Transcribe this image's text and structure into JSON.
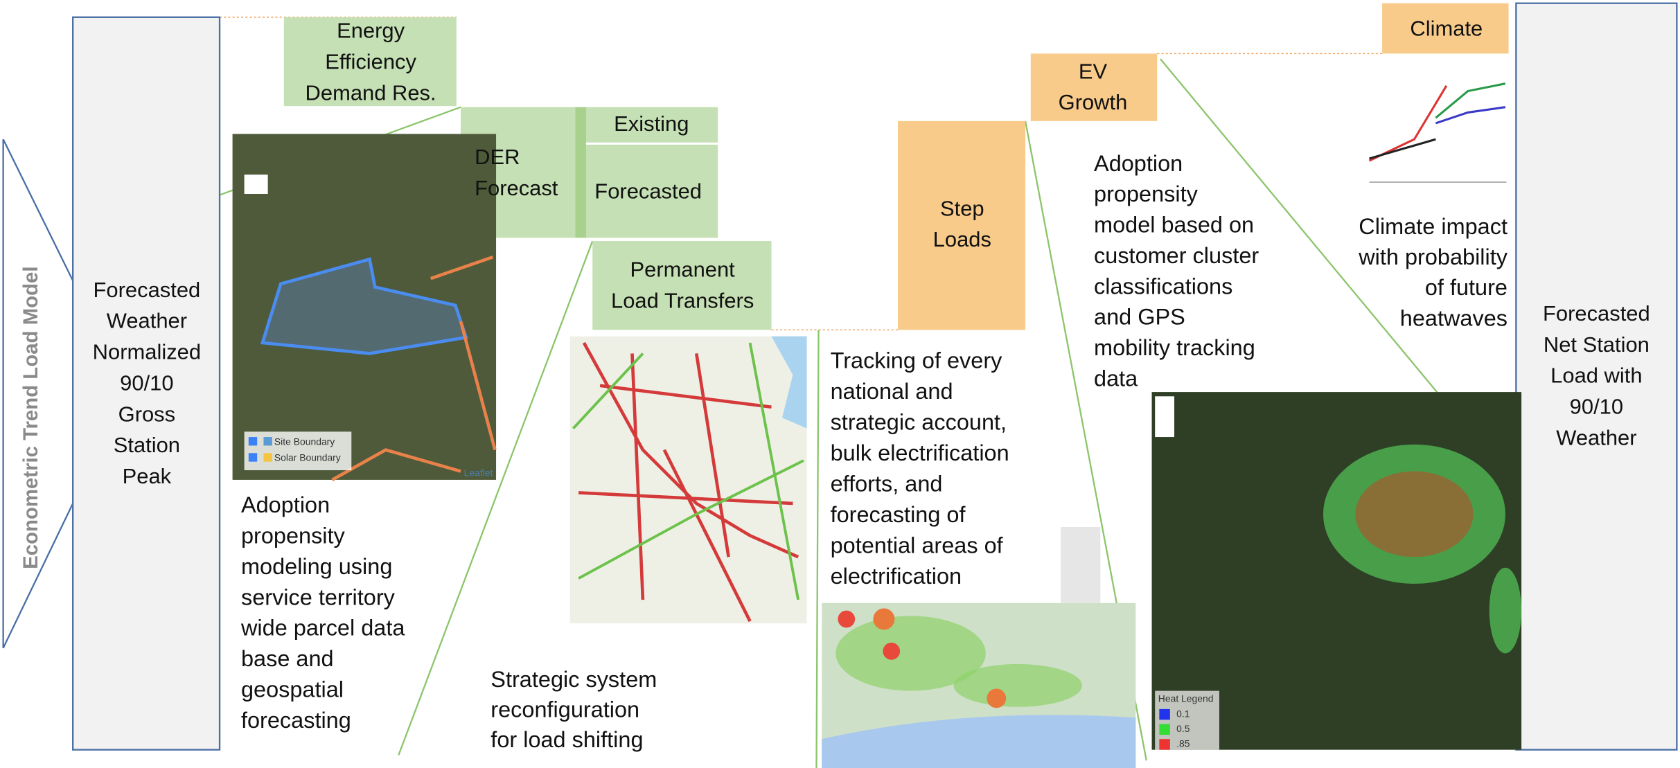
{
  "side_label": "Econometric Trend Load Model",
  "start_box": {
    "lines": [
      "Forecasted",
      "Weather",
      "Normalized",
      "90/10",
      "Gross",
      "Station",
      "Peak"
    ]
  },
  "end_box": {
    "lines": [
      "Forecasted",
      "Net Station",
      "Load with",
      "90/10",
      "Weather"
    ]
  },
  "boxes": {
    "energy_efficiency": [
      "Energy",
      "Efficiency",
      "Demand Res."
    ],
    "der": [
      "DER",
      "Forecast"
    ],
    "existing": "Existing",
    "forecasted": "Forecasted",
    "load_transfers": [
      "Permanent",
      "Load Transfers"
    ],
    "step_loads": [
      "Step",
      "Loads"
    ],
    "ev_growth": [
      "EV",
      "Growth"
    ],
    "climate": "Climate"
  },
  "descriptions": {
    "der": [
      "Adoption",
      "propensity",
      "modeling using",
      "service territory",
      "wide parcel data",
      "base and",
      "geospatial",
      "forecasting"
    ],
    "load_transfers": [
      "Strategic system",
      "reconfiguration",
      "for load shifting"
    ],
    "step_loads": [
      "Tracking of every",
      "national and",
      "strategic account,",
      "bulk electrification",
      "efforts, and",
      "forecasting of",
      "potential areas of",
      "electrification"
    ],
    "ev_growth": [
      "Adoption",
      "propensity",
      "model based on",
      "customer cluster",
      "classifications",
      "and GPS",
      "mobility tracking",
      "data"
    ],
    "climate": [
      "Climate impact",
      "with probability",
      "of future",
      "heatwaves"
    ]
  },
  "map_texts": {
    "site_boundary": "Site Boundary",
    "solar_boundary": "Solar Boundary",
    "leaflet": "Leaflet",
    "heat_legend": "Heat Legend",
    "legend_values": [
      "0.1",
      "0.5",
      ".85"
    ]
  }
}
